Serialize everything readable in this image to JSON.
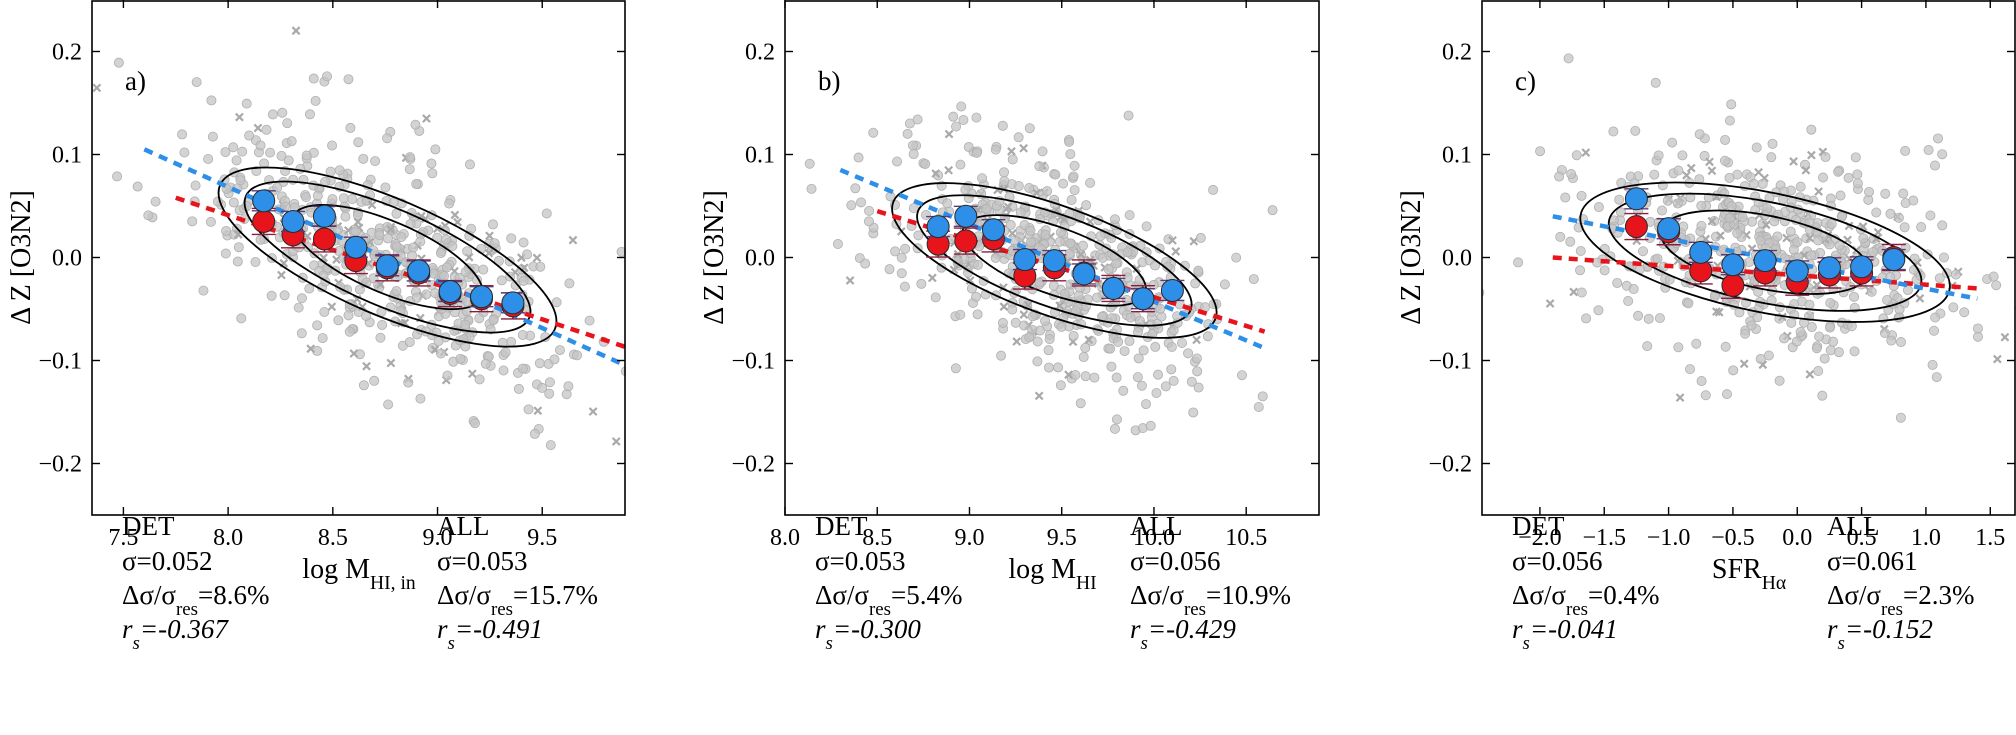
{
  "colors": {
    "det": "#e8141b",
    "all": "#2e8fe8",
    "background_points": "#c4c4c4",
    "contours": "#000000",
    "frame": "#000000"
  },
  "chart_data": [
    {
      "type": "scatter",
      "panel_label": "a)",
      "xlabel": {
        "main": "log M",
        "sub": "HI, in"
      },
      "ylabel": {
        "main": "Δ Z [O3N2]"
      },
      "xlim": [
        7.35,
        9.9
      ],
      "ylim": [
        -0.25,
        0.25
      ],
      "xticks": [
        7.5,
        8.0,
        8.5,
        9.0,
        9.5
      ],
      "xtick_labels": [
        "7.5",
        "8.0",
        "8.5",
        "9.0",
        "9.5"
      ],
      "yticks": [
        -0.2,
        -0.1,
        0.0,
        0.1,
        0.2
      ],
      "ytick_labels": [
        "−0.2",
        "−0.1",
        "0.0",
        "0.1",
        "0.2"
      ],
      "det_fit": {
        "x": [
          7.75,
          9.9
        ],
        "y": [
          0.058,
          -0.087
        ]
      },
      "all_fit": {
        "x": [
          7.6,
          9.9
        ],
        "y": [
          0.105,
          -0.105
        ]
      },
      "series": [
        {
          "name": "DET",
          "x": [
            8.17,
            8.31,
            8.46,
            8.61,
            8.76,
            8.91,
            9.06,
            9.21,
            9.36
          ],
          "y": [
            0.035,
            0.022,
            0.018,
            -0.003,
            -0.01,
            -0.015,
            -0.035,
            -0.04,
            -0.047
          ]
        },
        {
          "name": "ALL",
          "x": [
            8.17,
            8.31,
            8.46,
            8.61,
            8.76,
            8.91,
            9.06,
            9.21,
            9.36
          ],
          "y": [
            0.055,
            0.035,
            0.04,
            0.01,
            -0.008,
            -0.013,
            -0.033,
            -0.038,
            -0.044
          ]
        }
      ],
      "det_stats": {
        "label": "DET",
        "sigma": "σ=0.052",
        "dsigma": "Δσ/σ",
        "dsigma_sub": "res",
        "dsigma_val": "=8.6%",
        "rs": "r",
        "rs_sub": "s",
        "rs_val": "=-0.367"
      },
      "all_stats": {
        "label": "ALL",
        "sigma": "σ=0.053",
        "dsigma": "Δσ/σ",
        "dsigma_sub": "res",
        "dsigma_val": "=15.7%",
        "rs": "r",
        "rs_sub": "s",
        "rs_val": "=-0.491"
      }
    },
    {
      "type": "scatter",
      "panel_label": "b)",
      "xlabel": {
        "main": "log M",
        "sub": "HI"
      },
      "ylabel": {
        "main": "Δ Z [O3N2]"
      },
      "xlim": [
        8.0,
        10.9
      ],
      "ylim": [
        -0.25,
        0.25
      ],
      "xticks": [
        8.0,
        8.5,
        9.0,
        9.5,
        10.0,
        10.5
      ],
      "xtick_labels": [
        "8.0",
        "8.5",
        "9.0",
        "9.5",
        "10.0",
        "10.5"
      ],
      "yticks": [
        -0.2,
        -0.1,
        0.0,
        0.1,
        0.2
      ],
      "ytick_labels": [
        "−0.2",
        "−0.1",
        "0.0",
        "0.1",
        "0.2"
      ],
      "det_fit": {
        "x": [
          8.5,
          10.6
        ],
        "y": [
          0.045,
          -0.072
        ]
      },
      "all_fit": {
        "x": [
          8.3,
          10.6
        ],
        "y": [
          0.085,
          -0.088
        ]
      },
      "series": [
        {
          "name": "DET",
          "x": [
            8.83,
            8.98,
            9.13,
            9.3,
            9.46,
            9.62,
            9.78,
            9.94
          ],
          "y": [
            0.013,
            0.016,
            0.018,
            -0.018,
            -0.01,
            -0.015,
            -0.03,
            -0.04
          ]
        },
        {
          "name": "ALL",
          "x": [
            8.83,
            8.98,
            9.13,
            9.3,
            9.46,
            9.62,
            9.78,
            9.94,
            10.1
          ],
          "y": [
            0.03,
            0.04,
            0.027,
            -0.002,
            -0.003,
            -0.016,
            -0.03,
            -0.04,
            -0.032
          ]
        }
      ],
      "det_stats": {
        "label": "DET",
        "sigma": "σ=0.053",
        "dsigma": "Δσ/σ",
        "dsigma_sub": "res",
        "dsigma_val": "=5.4%",
        "rs": "r",
        "rs_sub": "s",
        "rs_val": "=-0.300"
      },
      "all_stats": {
        "label": "ALL",
        "sigma": "σ=0.056",
        "dsigma": "Δσ/σ",
        "dsigma_sub": "res",
        "dsigma_val": "=10.9%",
        "rs": "r",
        "rs_sub": "s",
        "rs_val": "=-0.429"
      }
    },
    {
      "type": "scatter",
      "panel_label": "c)",
      "xlabel": {
        "main": "SFR",
        "sub": "Hα"
      },
      "ylabel": {
        "main": "Δ Z [O3N2]"
      },
      "xlim": [
        -2.45,
        1.7
      ],
      "ylim": [
        -0.25,
        0.25
      ],
      "xticks": [
        -2.0,
        -1.5,
        -1.0,
        -0.5,
        0.0,
        0.5,
        1.0,
        1.5
      ],
      "xtick_labels": [
        "−2.0",
        "−1.5",
        "−1.0",
        "−0.5",
        "0.0",
        "0.5",
        "1.0",
        "1.5"
      ],
      "yticks": [
        -0.2,
        -0.1,
        0.0,
        0.1,
        0.2
      ],
      "ytick_labels": [
        "−0.2",
        "−0.1",
        "0.0",
        "0.1",
        "0.2"
      ],
      "det_fit": {
        "x": [
          -1.9,
          1.4
        ],
        "y": [
          0.0,
          -0.03
        ]
      },
      "all_fit": {
        "x": [
          -1.9,
          1.4
        ],
        "y": [
          0.04,
          -0.04
        ]
      },
      "series": [
        {
          "name": "DET",
          "x": [
            -1.25,
            -1.0,
            -0.75,
            -0.5,
            -0.25,
            0.0,
            0.25,
            0.5,
            0.75
          ],
          "y": [
            0.03,
            0.025,
            -0.013,
            -0.027,
            -0.015,
            -0.024,
            -0.017,
            -0.015,
            0.0
          ]
        },
        {
          "name": "ALL",
          "x": [
            -1.25,
            -1.0,
            -0.75,
            -0.5,
            -0.25,
            0.0,
            0.25,
            0.5,
            0.75
          ],
          "y": [
            0.057,
            0.028,
            0.005,
            -0.007,
            -0.003,
            -0.013,
            -0.01,
            -0.009,
            -0.002
          ]
        }
      ],
      "det_stats": {
        "label": "DET",
        "sigma": "σ=0.056",
        "dsigma": "Δσ/σ",
        "dsigma_sub": "res",
        "dsigma_val": "=0.4%",
        "rs": "r",
        "rs_sub": "s",
        "rs_val": "=-0.041"
      },
      "all_stats": {
        "label": "ALL",
        "sigma": "σ=0.061",
        "dsigma": "Δσ/σ",
        "dsigma_sub": "res",
        "dsigma_val": "=2.3%",
        "rs": "r",
        "rs_sub": "s",
        "rs_val": "=-0.152"
      }
    }
  ]
}
